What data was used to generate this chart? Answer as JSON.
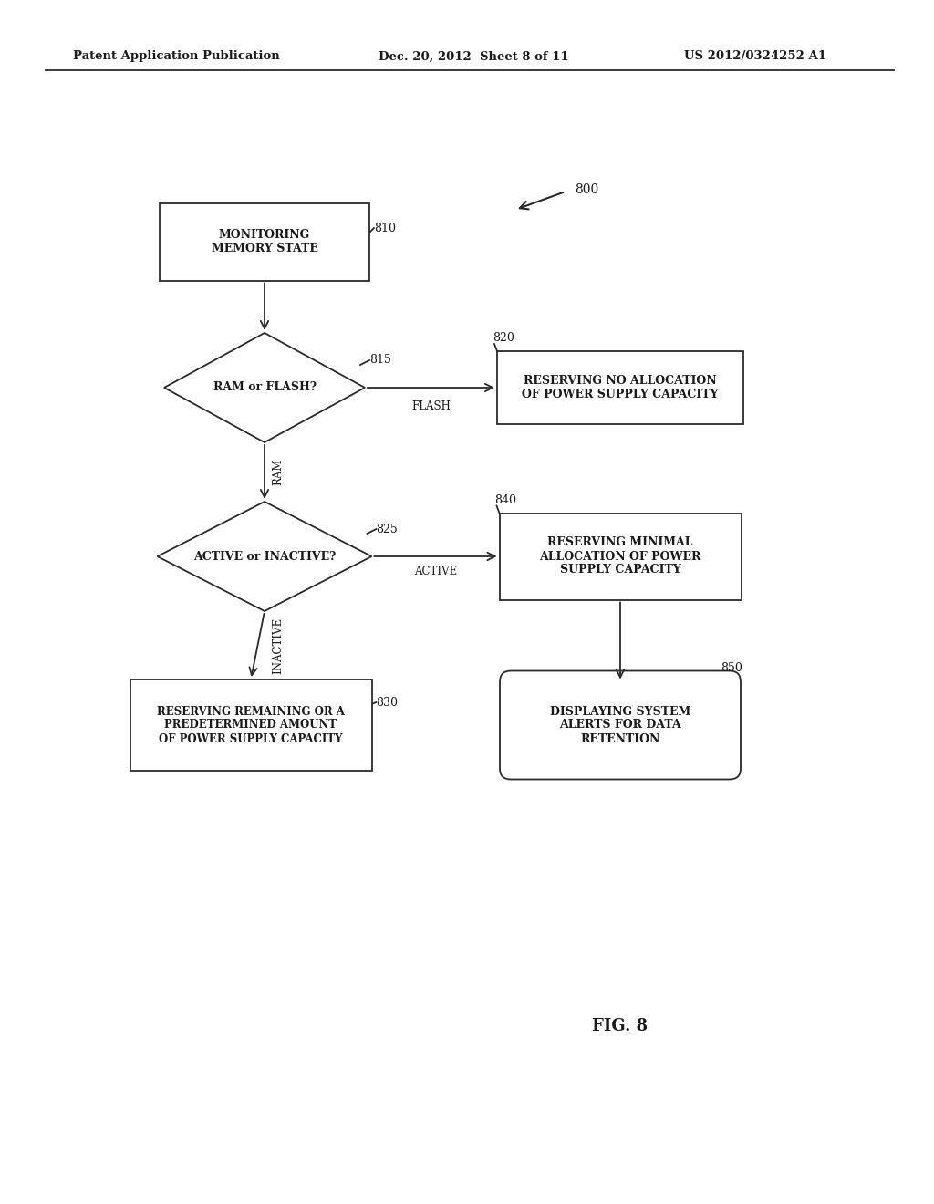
{
  "bg_color": "#ffffff",
  "header_left": "Patent Application Publication",
  "header_center": "Dec. 20, 2012  Sheet 8 of 11",
  "header_right": "US 2012/0324252 A1",
  "fig_label": "FIG. 8",
  "node_810_label": "MONITORING\nMEMORY STATE",
  "node_815_label": "RAM or FLASH?",
  "node_820_label": "RESERVING NO ALLOCATION\nOF POWER SUPPLY CAPACITY",
  "node_825_label": "ACTIVE or INACTIVE?",
  "node_840_label": "RESERVING MINIMAL\nALLOCATION OF POWER\nSUPPLY CAPACITY",
  "node_830_label": "RESERVING REMAINING OR A\nPREDETERMINED AMOUNT\nOF POWER SUPPLY CAPACITY",
  "node_850_label": "DISPLAYING SYSTEM\nALERTS FOR DATA\nRETENTION",
  "label_flash": "FLASH",
  "label_ram": "RAM",
  "label_active": "ACTIVE",
  "label_inactive": "INACTIVE",
  "ref_800": "800",
  "ref_810": "810",
  "ref_815": "815",
  "ref_820": "820",
  "ref_825": "825",
  "ref_830": "830",
  "ref_840": "840",
  "ref_850": "850"
}
